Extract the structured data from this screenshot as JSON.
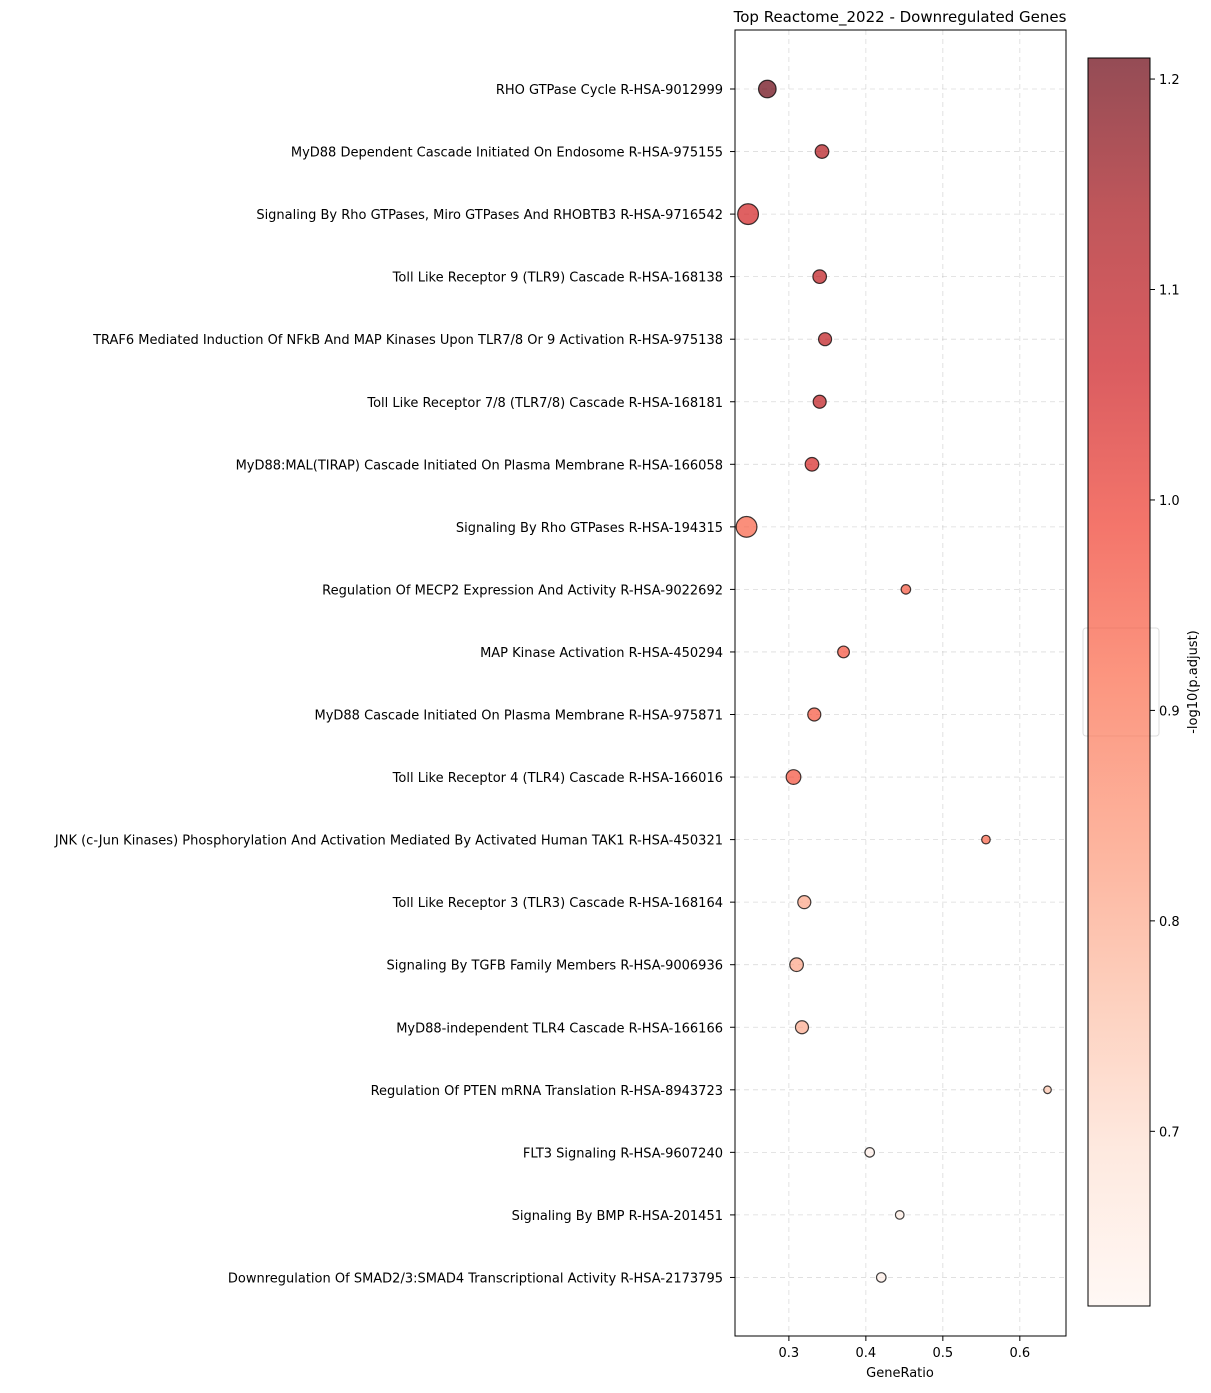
{
  "chart_data": {
    "type": "scatter",
    "title": "Top Reactome_2022 - Downregulated Genes",
    "xlabel": "GeneRatio",
    "ylabel": "",
    "xlim": [
      0.23,
      0.66
    ],
    "xticks": [
      0.3,
      0.4,
      0.5,
      0.6
    ],
    "xtick_labels": [
      "0.3",
      "0.4",
      "0.5",
      "0.6"
    ],
    "grid": true,
    "categories": [
      "RHO GTPase Cycle R-HSA-9012999",
      "MyD88 Dependent Cascade Initiated On Endosome R-HSA-975155",
      "Signaling By Rho GTPases, Miro GTPases And RHOBTB3 R-HSA-9716542",
      "Toll Like Receptor 9 (TLR9) Cascade R-HSA-168138",
      "TRAF6 Mediated Induction Of NFkB And MAP Kinases Upon TLR7/8 Or 9 Activation R-HSA-975138",
      "Toll Like Receptor 7/8 (TLR7/8) Cascade R-HSA-168181",
      "MyD88:MAL(TIRAP) Cascade Initiated On Plasma Membrane R-HSA-166058",
      "Signaling By Rho GTPases R-HSA-194315",
      "Regulation Of MECP2 Expression And Activity R-HSA-9022692",
      "MAP Kinase Activation R-HSA-450294",
      "MyD88 Cascade Initiated On Plasma Membrane R-HSA-975871",
      "Toll Like Receptor 4 (TLR4) Cascade R-HSA-166016",
      "JNK (c-Jun Kinases) Phosphorylation And Activation Mediated By Activated Human TAK1 R-HSA-450321",
      "Toll Like Receptor 3 (TLR3) Cascade R-HSA-168164",
      "Signaling By TGFB Family Members R-HSA-9006936",
      "MyD88-independent TLR4 Cascade R-HSA-166166",
      "Regulation Of PTEN mRNA Translation R-HSA-8943723",
      "FLT3 Signaling R-HSA-9607240",
      "Signaling By BMP R-HSA-201451",
      "Downregulation Of SMAD2/3:SMAD4 Transcriptional Activity R-HSA-2173795"
    ],
    "gene_ratio": [
      0.272,
      0.343,
      0.247,
      0.34,
      0.347,
      0.34,
      0.33,
      0.245,
      0.452,
      0.371,
      0.333,
      0.306,
      0.556,
      0.32,
      0.31,
      0.317,
      0.636,
      0.405,
      0.444,
      0.42
    ],
    "neg_log10_padj": [
      1.21,
      1.11,
      1.05,
      1.09,
      1.09,
      1.09,
      1.04,
      0.93,
      0.95,
      0.96,
      0.95,
      0.96,
      0.93,
      0.81,
      0.81,
      0.8,
      0.75,
      0.64,
      0.65,
      0.64
    ],
    "count": [
      19,
      11,
      27,
      11,
      10,
      10,
      11,
      27,
      5,
      8,
      10,
      13,
      4,
      10,
      11,
      10,
      3,
      5,
      4,
      5
    ],
    "colorbar": {
      "label": "-log10(p.adjust)",
      "range": [
        0.617,
        1.21
      ],
      "ticks": [
        0.7,
        0.8,
        0.9,
        1.0,
        1.1,
        1.2
      ],
      "tick_labels": [
        "0.7",
        "0.8",
        "0.9",
        "1.0",
        "1.1",
        "1.2"
      ],
      "colormap": [
        "#fff5f0",
        "#fee0d2",
        "#fcbba1",
        "#fc9272",
        "#fb6a4a",
        "#ef3b2c",
        "#cb181d",
        "#a50f15",
        "#67000d"
      ]
    },
    "marker_alpha": 0.7,
    "marker_edge_color": "#000000"
  }
}
